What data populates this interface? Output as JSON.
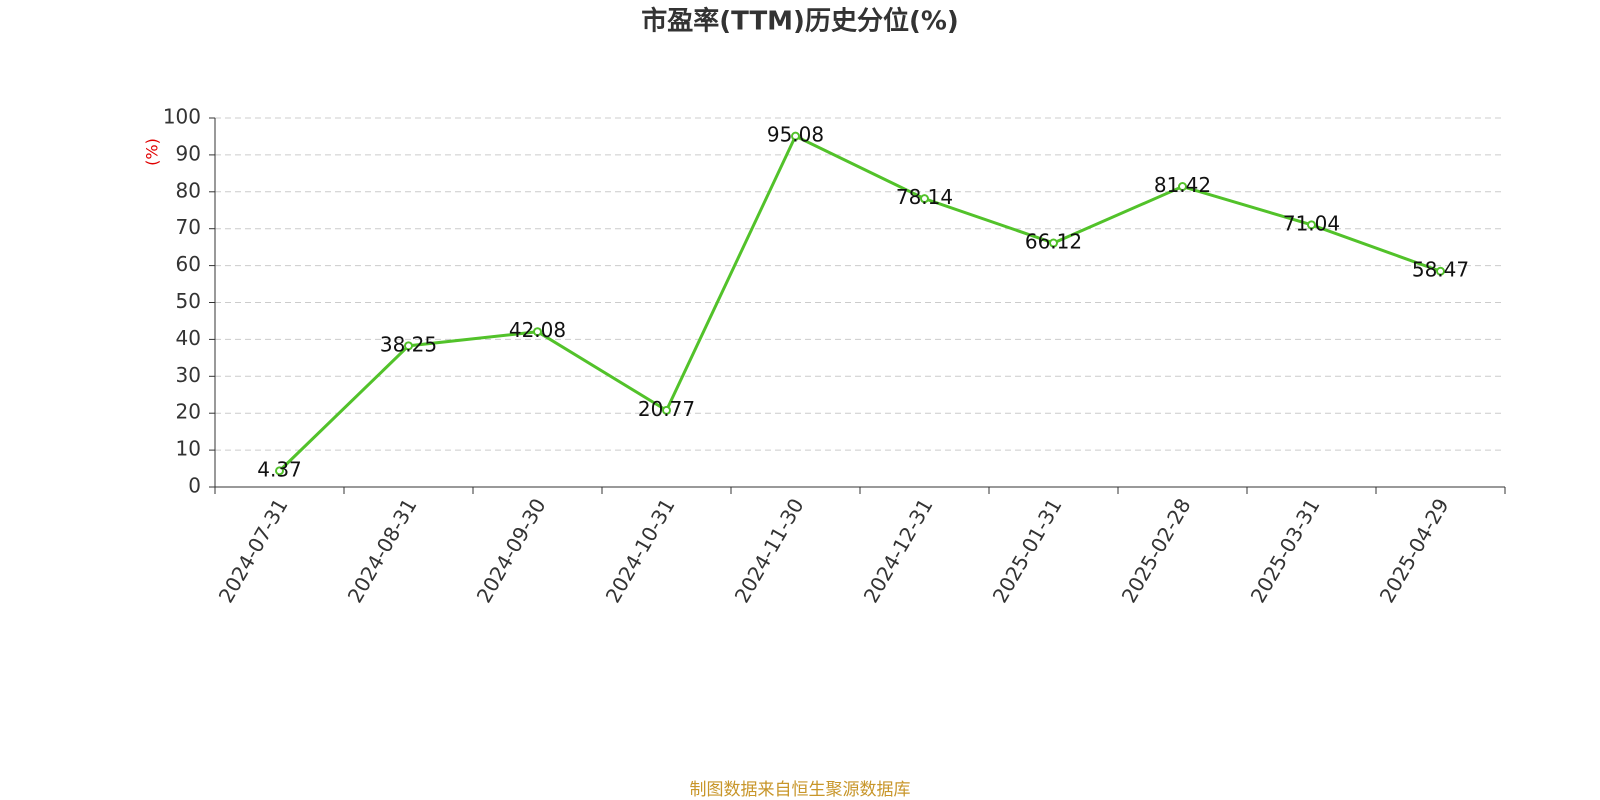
{
  "chart_data": {
    "type": "line",
    "title": "市盈率(TTM)历史分位(%)",
    "y_label": "(%)",
    "source": "制图数据来自恒生聚源数据库",
    "categories": [
      "2024-07-31",
      "2024-08-31",
      "2024-09-30",
      "2024-10-31",
      "2024-11-30",
      "2024-12-31",
      "2025-01-31",
      "2025-02-28",
      "2025-03-31",
      "2025-04-29"
    ],
    "series": [
      {
        "name": "市盈率(TTM)历史分位",
        "color": "#52c22a",
        "values": [
          4.37,
          38.25,
          42.08,
          20.77,
          95.08,
          78.14,
          66.12,
          81.42,
          71.04,
          58.47
        ]
      }
    ],
    "ylim": [
      0,
      100
    ],
    "yticks": [
      0,
      10,
      20,
      30,
      40,
      50,
      60,
      70,
      80,
      90,
      100
    ],
    "grid": true
  }
}
